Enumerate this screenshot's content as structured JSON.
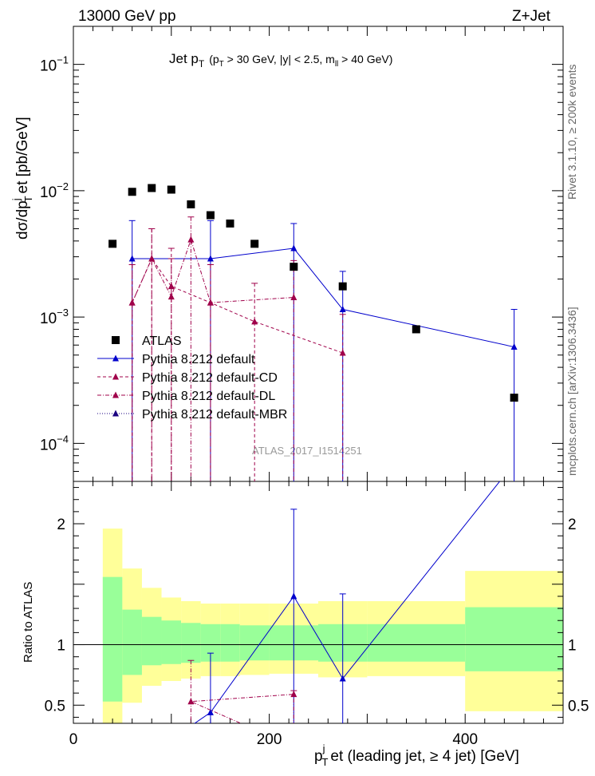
{
  "header": {
    "energy_label": "13000 GeV pp",
    "process_label": "Z+Jet"
  },
  "side_labels": {
    "rivet": "Rivet 3.1.10, ≥ 200k events",
    "mcplots": "mcplots.cern.ch [arXiv:1306.3436]"
  },
  "chart_data": {
    "type": "scatter",
    "title": "Jet p_T (p_T > 30 GeV, |y| < 2.5, m_ll > 40 GeV)",
    "title_parts": {
      "main": "Jet p",
      "main_sub": "T",
      "paren_open": "(p",
      "cut1_sub": "T",
      "cut1_rest": " > 30 GeV, |y| < 2.5, m",
      "cut3_sub": "ll",
      "cut3_rest": " > 40 GeV)"
    },
    "watermark": "ATLAS_2017_I1514251",
    "xlabel": "p_T^j et (leading jet, ≥ 4 jet) [GeV]",
    "xlabel_parts": {
      "p": "p",
      "sup": "j",
      "sub": "T",
      "rest": "et (leading jet, ≥ 4 jet) [GeV]"
    },
    "ylabel": "dσ/dp_T^j et [pb/GeV]",
    "ylabel_parts": {
      "a": "dσ/dp",
      "sup": "j",
      "sub": "T",
      "rest": "et [pb/GeV]"
    },
    "ratio_ylabel": "Ratio to ATLAS",
    "xlim": [
      0,
      500
    ],
    "ylim_log": [
      5e-05,
      0.2
    ],
    "ratio_ylim": [
      0.35,
      2.35
    ],
    "x_ticks": [
      {
        "value": 0,
        "label": "0"
      },
      {
        "value": 200,
        "label": "200"
      },
      {
        "value": 400,
        "label": "400"
      }
    ],
    "y_ticks": [
      {
        "value": 0.0001,
        "base": "10",
        "exp": "−4"
      },
      {
        "value": 0.001,
        "base": "10",
        "exp": "−3"
      },
      {
        "value": 0.01,
        "base": "10",
        "exp": "−2"
      },
      {
        "value": 0.1,
        "base": "10",
        "exp": "−1"
      }
    ],
    "ratio_ticks": [
      {
        "value": 0.5,
        "label": "0.5"
      },
      {
        "value": 1,
        "label": "1"
      },
      {
        "value": 2,
        "label": "2"
      }
    ],
    "legend": {
      "position": "bottom-left",
      "entries": [
        {
          "label": "ATLAS",
          "style": "square",
          "color": "#000000"
        },
        {
          "label": "Pythia 8.212 default",
          "style": "solid",
          "color": "#0000cc"
        },
        {
          "label": "Pythia 8.212 default-CD",
          "style": "dashed",
          "color": "#a0004a"
        },
        {
          "label": "Pythia 8.212 default-DL",
          "style": "dashdot",
          "color": "#a0004a"
        },
        {
          "label": "Pythia 8.212 default-MBR",
          "style": "dotted",
          "color": "#1a0080"
        }
      ]
    },
    "data_points": [
      {
        "x": 40,
        "y": 0.0038
      },
      {
        "x": 60,
        "y": 0.0098
      },
      {
        "x": 80,
        "y": 0.0105
      },
      {
        "x": 100,
        "y": 0.0102
      },
      {
        "x": 120,
        "y": 0.0078
      },
      {
        "x": 140,
        "y": 0.0064
      },
      {
        "x": 160,
        "y": 0.0055
      },
      {
        "x": 185,
        "y": 0.0038
      },
      {
        "x": 225,
        "y": 0.0025
      },
      {
        "x": 275,
        "y": 0.00175
      },
      {
        "x": 350,
        "y": 0.0008
      },
      {
        "x": 450,
        "y": 0.00023
      }
    ],
    "series": [
      {
        "name": "Pythia 8.212 default",
        "color": "#0000cc",
        "dash": "",
        "points": [
          {
            "x": 60,
            "y": 0.0029,
            "lo": 5e-05,
            "hi": 0.0058
          },
          {
            "x": 140,
            "y": 0.0029,
            "lo": 5e-05,
            "hi": 0.0058
          },
          {
            "x": 225,
            "y": 0.0035,
            "lo": 5e-05,
            "hi": 0.0055
          },
          {
            "x": 275,
            "y": 0.00115,
            "lo": 5e-05,
            "hi": 0.0023
          },
          {
            "x": 450,
            "y": 0.00058,
            "lo": 5e-05,
            "hi": 0.00115
          }
        ],
        "ratio": [
          {
            "x": 140,
            "y": 0.44,
            "lo": 0.35,
            "hi": 0.93
          },
          {
            "x": 225,
            "y": 1.4,
            "lo": 0.35,
            "hi": 2.12
          },
          {
            "x": 275,
            "y": 0.72,
            "lo": 0.35,
            "hi": 1.42
          },
          {
            "x": 450,
            "y": 2.5
          }
        ],
        "ratio_lead_in": {
          "x": 115,
          "y": 0.3
        }
      },
      {
        "name": "Pythia 8.212 default-CD",
        "color": "#a0004a",
        "dash": "4,3",
        "points": [
          {
            "x": 60,
            "y": 0.0013,
            "lo": 5e-05,
            "hi": 0.0026
          },
          {
            "x": 80,
            "y": 0.0029,
            "lo": 5e-05,
            "hi": 0.005
          },
          {
            "x": 100,
            "y": 0.00175,
            "lo": 5e-05,
            "hi": 0.0035
          },
          {
            "x": 140,
            "y": 0.0013,
            "lo": 5e-05,
            "hi": 0.0026
          },
          {
            "x": 185,
            "y": 0.00092,
            "lo": 5e-05,
            "hi": 0.00185
          },
          {
            "x": 275,
            "y": 0.00052,
            "lo": 5e-05,
            "hi": 0.00105
          }
        ]
      },
      {
        "name": "Pythia 8.212 default-DL",
        "color": "#a0004a",
        "dash": "5,2,1,2",
        "points": [
          {
            "x": 60,
            "y": 0.0013,
            "lo": 5e-05,
            "hi": 0.0026
          },
          {
            "x": 80,
            "y": 0.0029,
            "lo": 5e-05,
            "hi": 0.005
          },
          {
            "x": 100,
            "y": 0.00145,
            "lo": 5e-05,
            "hi": 0.0029
          },
          {
            "x": 120,
            "y": 0.0041,
            "lo": 5e-05,
            "hi": 0.0062
          },
          {
            "x": 140,
            "y": 0.0013,
            "lo": 5e-05,
            "hi": 0.0026
          },
          {
            "x": 225,
            "y": 0.00143,
            "lo": 5e-05,
            "hi": 0.0028
          }
        ],
        "ratio": [
          {
            "x": 120,
            "y": 0.53,
            "lo": 0.35,
            "hi": 0.87
          },
          {
            "x": 225,
            "y": 0.59,
            "lo": 0.35,
            "hi": 0.62
          }
        ],
        "ratio_lead_in": {
          "x": 185,
          "y": 0.3
        }
      },
      {
        "name": "Pythia 8.212 default-MBR",
        "color": "#1a0080",
        "dash": "1,2",
        "points": []
      }
    ],
    "ratio_bands": [
      {
        "x0": 30,
        "x1": 50,
        "green": [
          0.53,
          1.56
        ],
        "yellow": [
          0.35,
          1.96
        ]
      },
      {
        "x0": 50,
        "x1": 70,
        "green": [
          0.75,
          1.29
        ],
        "yellow": [
          0.52,
          1.63
        ]
      },
      {
        "x0": 70,
        "x1": 90,
        "green": [
          0.83,
          1.23
        ],
        "yellow": [
          0.66,
          1.47
        ]
      },
      {
        "x0": 90,
        "x1": 110,
        "green": [
          0.84,
          1.2
        ],
        "yellow": [
          0.7,
          1.39
        ]
      },
      {
        "x0": 110,
        "x1": 130,
        "green": [
          0.85,
          1.18
        ],
        "yellow": [
          0.72,
          1.36
        ]
      },
      {
        "x0": 130,
        "x1": 150,
        "green": [
          0.86,
          1.17
        ],
        "yellow": [
          0.74,
          1.34
        ]
      },
      {
        "x0": 150,
        "x1": 170,
        "green": [
          0.86,
          1.17
        ],
        "yellow": [
          0.74,
          1.34
        ]
      },
      {
        "x0": 170,
        "x1": 200,
        "green": [
          0.87,
          1.16
        ],
        "yellow": [
          0.75,
          1.34
        ]
      },
      {
        "x0": 200,
        "x1": 250,
        "green": [
          0.87,
          1.16
        ],
        "yellow": [
          0.76,
          1.34
        ]
      },
      {
        "x0": 250,
        "x1": 300,
        "green": [
          0.86,
          1.17
        ],
        "yellow": [
          0.73,
          1.36
        ]
      },
      {
        "x0": 300,
        "x1": 400,
        "green": [
          0.86,
          1.17
        ],
        "yellow": [
          0.74,
          1.36
        ]
      },
      {
        "x0": 400,
        "x1": 500,
        "green": [
          0.78,
          1.31
        ],
        "yellow": [
          0.45,
          1.61
        ]
      }
    ]
  }
}
